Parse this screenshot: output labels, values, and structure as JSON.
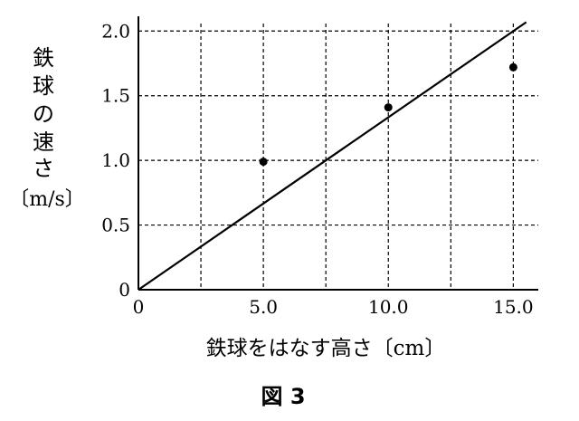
{
  "chart_data": {
    "type": "scatter",
    "caption": "図 3",
    "ylabel": {
      "vertical": [
        "鉄",
        "球",
        "の",
        "速",
        "さ"
      ],
      "unit": "〔m/s〕"
    },
    "xlabel": "鉄球をはなす高さ〔cm〕",
    "xlim": [
      0,
      16.0
    ],
    "ylim": [
      0,
      2.1
    ],
    "x_ticks": [
      {
        "value": 0,
        "label": "0"
      },
      {
        "value": 5.0,
        "label": "5.0"
      },
      {
        "value": 10.0,
        "label": "10.0"
      },
      {
        "value": 15.0,
        "label": "15.0"
      }
    ],
    "y_ticks": [
      {
        "value": 0,
        "label": "0"
      },
      {
        "value": 0.5,
        "label": "0.5"
      },
      {
        "value": 1.0,
        "label": "1.0"
      },
      {
        "value": 1.5,
        "label": "1.5"
      },
      {
        "value": 2.0,
        "label": "2.0"
      }
    ],
    "grid_x": [
      2.5,
      5.0,
      7.5,
      10.0,
      12.5,
      15.0
    ],
    "grid_y": [
      0.5,
      1.0,
      1.5,
      2.0
    ],
    "grid": "dashed",
    "points": [
      {
        "x": 5.0,
        "y": 0.99
      },
      {
        "x": 10.0,
        "y": 1.41
      },
      {
        "x": 15.0,
        "y": 1.72
      }
    ],
    "line": {
      "slope": 0.1333,
      "intercept": 0
    }
  }
}
